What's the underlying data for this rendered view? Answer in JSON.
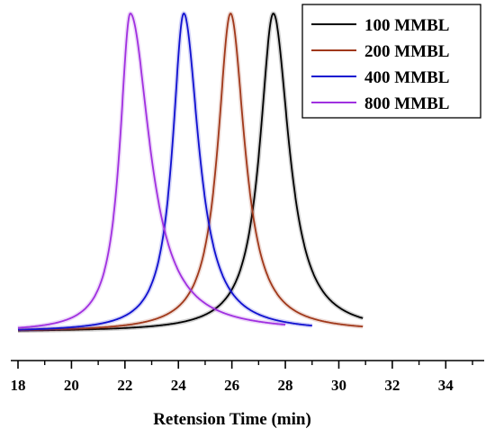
{
  "chart_data": {
    "type": "line",
    "title": "",
    "xlabel": "Retension Time (min)",
    "ylabel": "",
    "xlim": [
      18,
      35
    ],
    "xticks": [
      "18",
      "20",
      "22",
      "24",
      "26",
      "28",
      "30",
      "32",
      "34"
    ],
    "grid": false,
    "legend_position": "top-right",
    "series": [
      {
        "name": "100 MMBL",
        "color": "#000000",
        "peak_x": 27.55,
        "width_left": 0.9,
        "width_right": 1.05,
        "x_start": 18.0,
        "x_end": 30.9
      },
      {
        "name": "200 MMBL",
        "color": "#a0381a",
        "peak_x": 25.95,
        "width_left": 0.85,
        "width_right": 0.95,
        "x_start": 18.0,
        "x_end": 30.9
      },
      {
        "name": "400 MMBL",
        "color": "#1010d0",
        "peak_x": 24.2,
        "width_left": 0.75,
        "width_right": 1.0,
        "x_start": 18.0,
        "x_end": 29.0
      },
      {
        "name": "800 MMBL",
        "color": "#a030e0",
        "peak_x": 22.2,
        "width_left": 0.7,
        "width_right": 1.3,
        "x_start": 18.0,
        "x_end": 28.0
      }
    ]
  }
}
